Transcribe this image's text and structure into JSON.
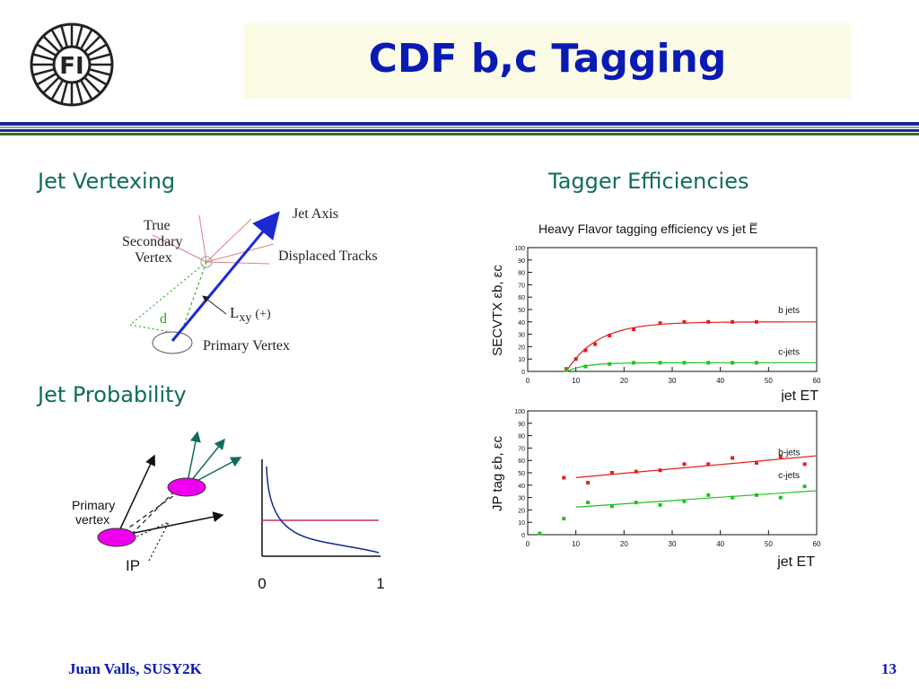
{
  "header": {
    "title": "CDF b,c Tagging",
    "logo_text": "FI",
    "colors": {
      "title": "#0a1ab4",
      "title_bg": "#fbfbe6",
      "rule_blue": "#1a2a8c",
      "rule_green": "#3a6e1a"
    }
  },
  "sections": {
    "jet_vertexing": "Jet Vertexing",
    "tagger_efficiencies": "Tagger Efficiencies",
    "jet_probability": "Jet Probability"
  },
  "vertex_diagram": {
    "jet_axis": "Jet Axis",
    "true_secondary_vertex_lines": [
      "True",
      "Secondary",
      "Vertex"
    ],
    "displaced_tracks": "Displaced Tracks",
    "d": "d",
    "lxy": "L",
    "lxy_sub": "xy",
    "lxy_sign": "(+)",
    "primary_vertex": "Primary Vertex"
  },
  "jp_diagram": {
    "primary_vertex_lines": [
      "Primary",
      "vertex"
    ],
    "ip": "IP",
    "x0": "0",
    "x1": "1"
  },
  "footer": {
    "author": "Juan Valls, SUSY2K",
    "page": "13"
  },
  "chart_data": [
    {
      "type": "scatter",
      "title": "Heavy Flavor tagging efficiency vs jet E̅",
      "xlabel": "jet ET",
      "ylabel": "SECVTX εb, εc",
      "xlim": [
        0,
        60
      ],
      "ylim": [
        0,
        100
      ],
      "xticks": [
        0,
        10,
        20,
        30,
        40,
        50,
        60
      ],
      "yticks": [
        0,
        10,
        20,
        30,
        40,
        50,
        60,
        70,
        80,
        90,
        100
      ],
      "series": [
        {
          "name": "b jets",
          "color": "#e02020",
          "x": [
            8,
            10,
            12,
            14,
            17,
            22,
            27.5,
            32.5,
            37.5,
            42.5,
            47.5
          ],
          "y": [
            2,
            10,
            17,
            22,
            29,
            34,
            39,
            40,
            40,
            40,
            40
          ]
        },
        {
          "name": "c-jets",
          "color": "#20c020",
          "x": [
            8,
            12,
            17,
            22,
            27.5,
            32.5,
            37.5,
            42.5,
            47.5
          ],
          "y": [
            1,
            4,
            6,
            7,
            7,
            7,
            7,
            7,
            7
          ]
        }
      ]
    },
    {
      "type": "scatter",
      "title": "",
      "xlabel": "jet ET",
      "ylabel": "JP tag εb, εc",
      "xlim": [
        0,
        60
      ],
      "ylim": [
        0,
        100
      ],
      "xticks": [
        0,
        10,
        20,
        30,
        40,
        50,
        60
      ],
      "yticks": [
        0,
        10,
        20,
        30,
        40,
        50,
        60,
        70,
        80,
        90,
        100
      ],
      "series": [
        {
          "name": "b-jets",
          "color": "#e02020",
          "x": [
            7.5,
            12.5,
            17.5,
            22.5,
            27.5,
            32.5,
            37.5,
            42.5,
            47.5,
            52.5,
            57.5
          ],
          "y": [
            46,
            42,
            50,
            51,
            52,
            57,
            57,
            62,
            58,
            63,
            57
          ]
        },
        {
          "name": "c-jets",
          "color": "#20c020",
          "x": [
            2.5,
            7.5,
            12.5,
            17.5,
            22.5,
            27.5,
            32.5,
            37.5,
            42.5,
            47.5,
            52.5,
            57.5
          ],
          "y": [
            1,
            13,
            26,
            23,
            26,
            24,
            27,
            32,
            30,
            32,
            30,
            39
          ]
        }
      ]
    }
  ]
}
